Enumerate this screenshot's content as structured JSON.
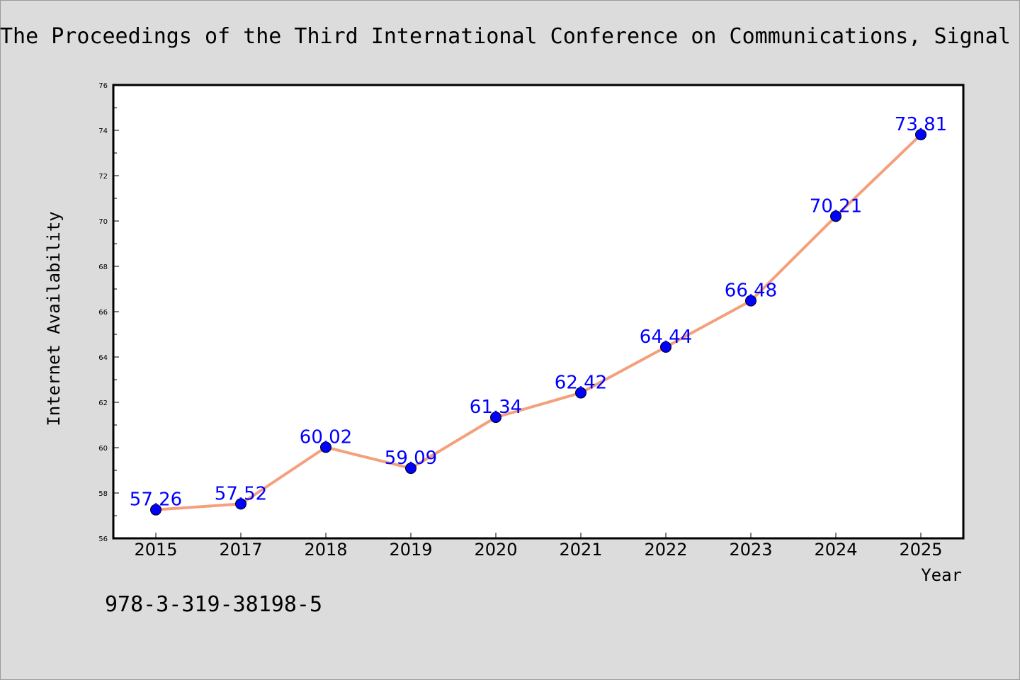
{
  "page": {
    "title": "The Proceedings of the Third International Conference on Communications, Signal",
    "footer_code": "978-3-319-38198-5"
  },
  "chart_data": {
    "type": "line",
    "title": "The Proceedings of the Third International Conference on Communications, Signal",
    "xlabel": "Year",
    "ylabel": "Internet Availability",
    "categories": [
      "2015",
      "2017",
      "2018",
      "2019",
      "2020",
      "2021",
      "2022",
      "2023",
      "2024",
      "2025"
    ],
    "series": [
      {
        "values": [
          57.26,
          57.52,
          60.02,
          59.09,
          61.34,
          62.42,
          64.44,
          66.48,
          70.21,
          73.81
        ],
        "data_labels": [
          "57.26",
          "57.52",
          "60.02",
          "59.09",
          "61.34",
          "62.42",
          "64.44",
          "66.48",
          "70.21",
          "73.81"
        ],
        "line_color": "#f4a07c",
        "marker_color": "#0000ff"
      }
    ],
    "ylim": [
      56,
      76
    ],
    "yticks": [
      "56",
      "58",
      "60",
      "62",
      "64",
      "66",
      "68",
      "70",
      "72",
      "74",
      "76"
    ],
    "grid": false,
    "legend": "none",
    "background_color": "#dcdcdc",
    "plot_background_color": "#ffffff",
    "label_color": "#0000ff"
  }
}
